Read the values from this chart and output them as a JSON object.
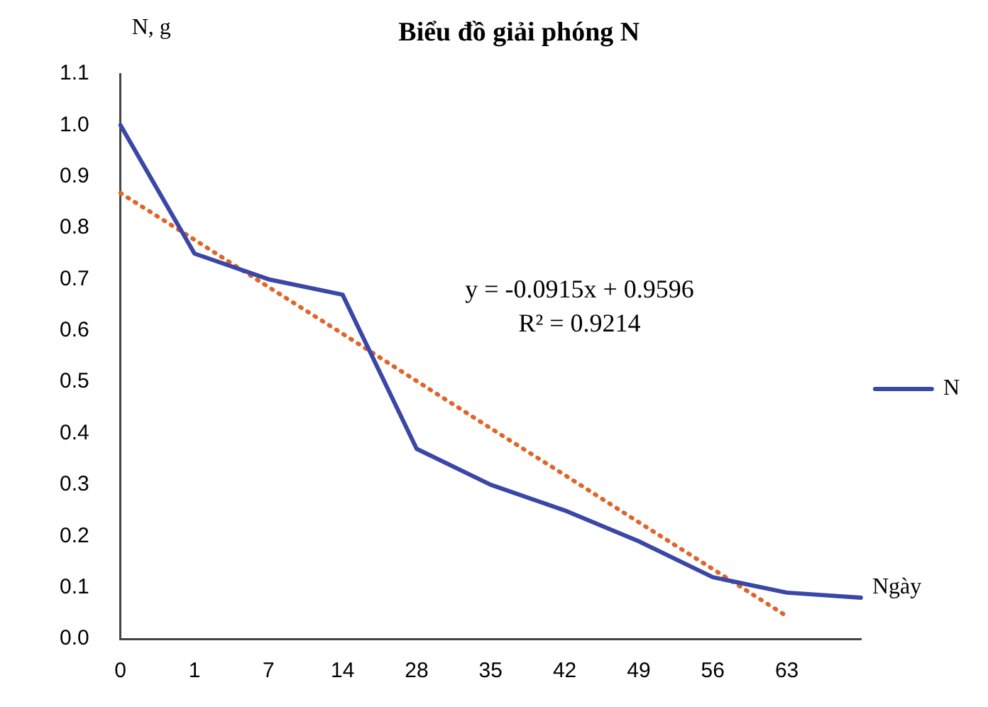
{
  "chart_data": {
    "type": "line",
    "title": "Biểu đồ giải phóng N",
    "xlabel": "Ngày",
    "ylabel": "N, g",
    "categories": [
      "0",
      "1",
      "7",
      "14",
      "28",
      "35",
      "42",
      "49",
      "56",
      "63",
      null
    ],
    "series": [
      {
        "name": "N",
        "color": "#3a47a6",
        "values": [
          1.0,
          0.75,
          0.7,
          0.67,
          0.37,
          0.3,
          0.25,
          0.19,
          0.12,
          0.09,
          0.08
        ],
        "line_style": "solid"
      },
      {
        "type": "line",
        "color": "#e0652a",
        "values": [
          0.868,
          0.777,
          0.685,
          0.594,
          0.502,
          0.41,
          0.319,
          0.227,
          0.136,
          0.044,
          null
        ],
        "line_style": "dotted"
      }
    ],
    "ylim": [
      0,
      1.1
    ],
    "yticks": [
      {
        "value": 0,
        "label": "0.0"
      },
      0.1,
      0.2,
      0.3,
      0.4,
      0.5,
      0.6,
      0.7,
      0.8,
      0.9,
      {
        "value": 1,
        "label": "1.0"
      },
      1.1
    ],
    "annotations": [
      "y = -0.0915x + 0.9596",
      "R² = 0.9214"
    ],
    "grid": false,
    "legend": "right",
    "marker": "none"
  }
}
